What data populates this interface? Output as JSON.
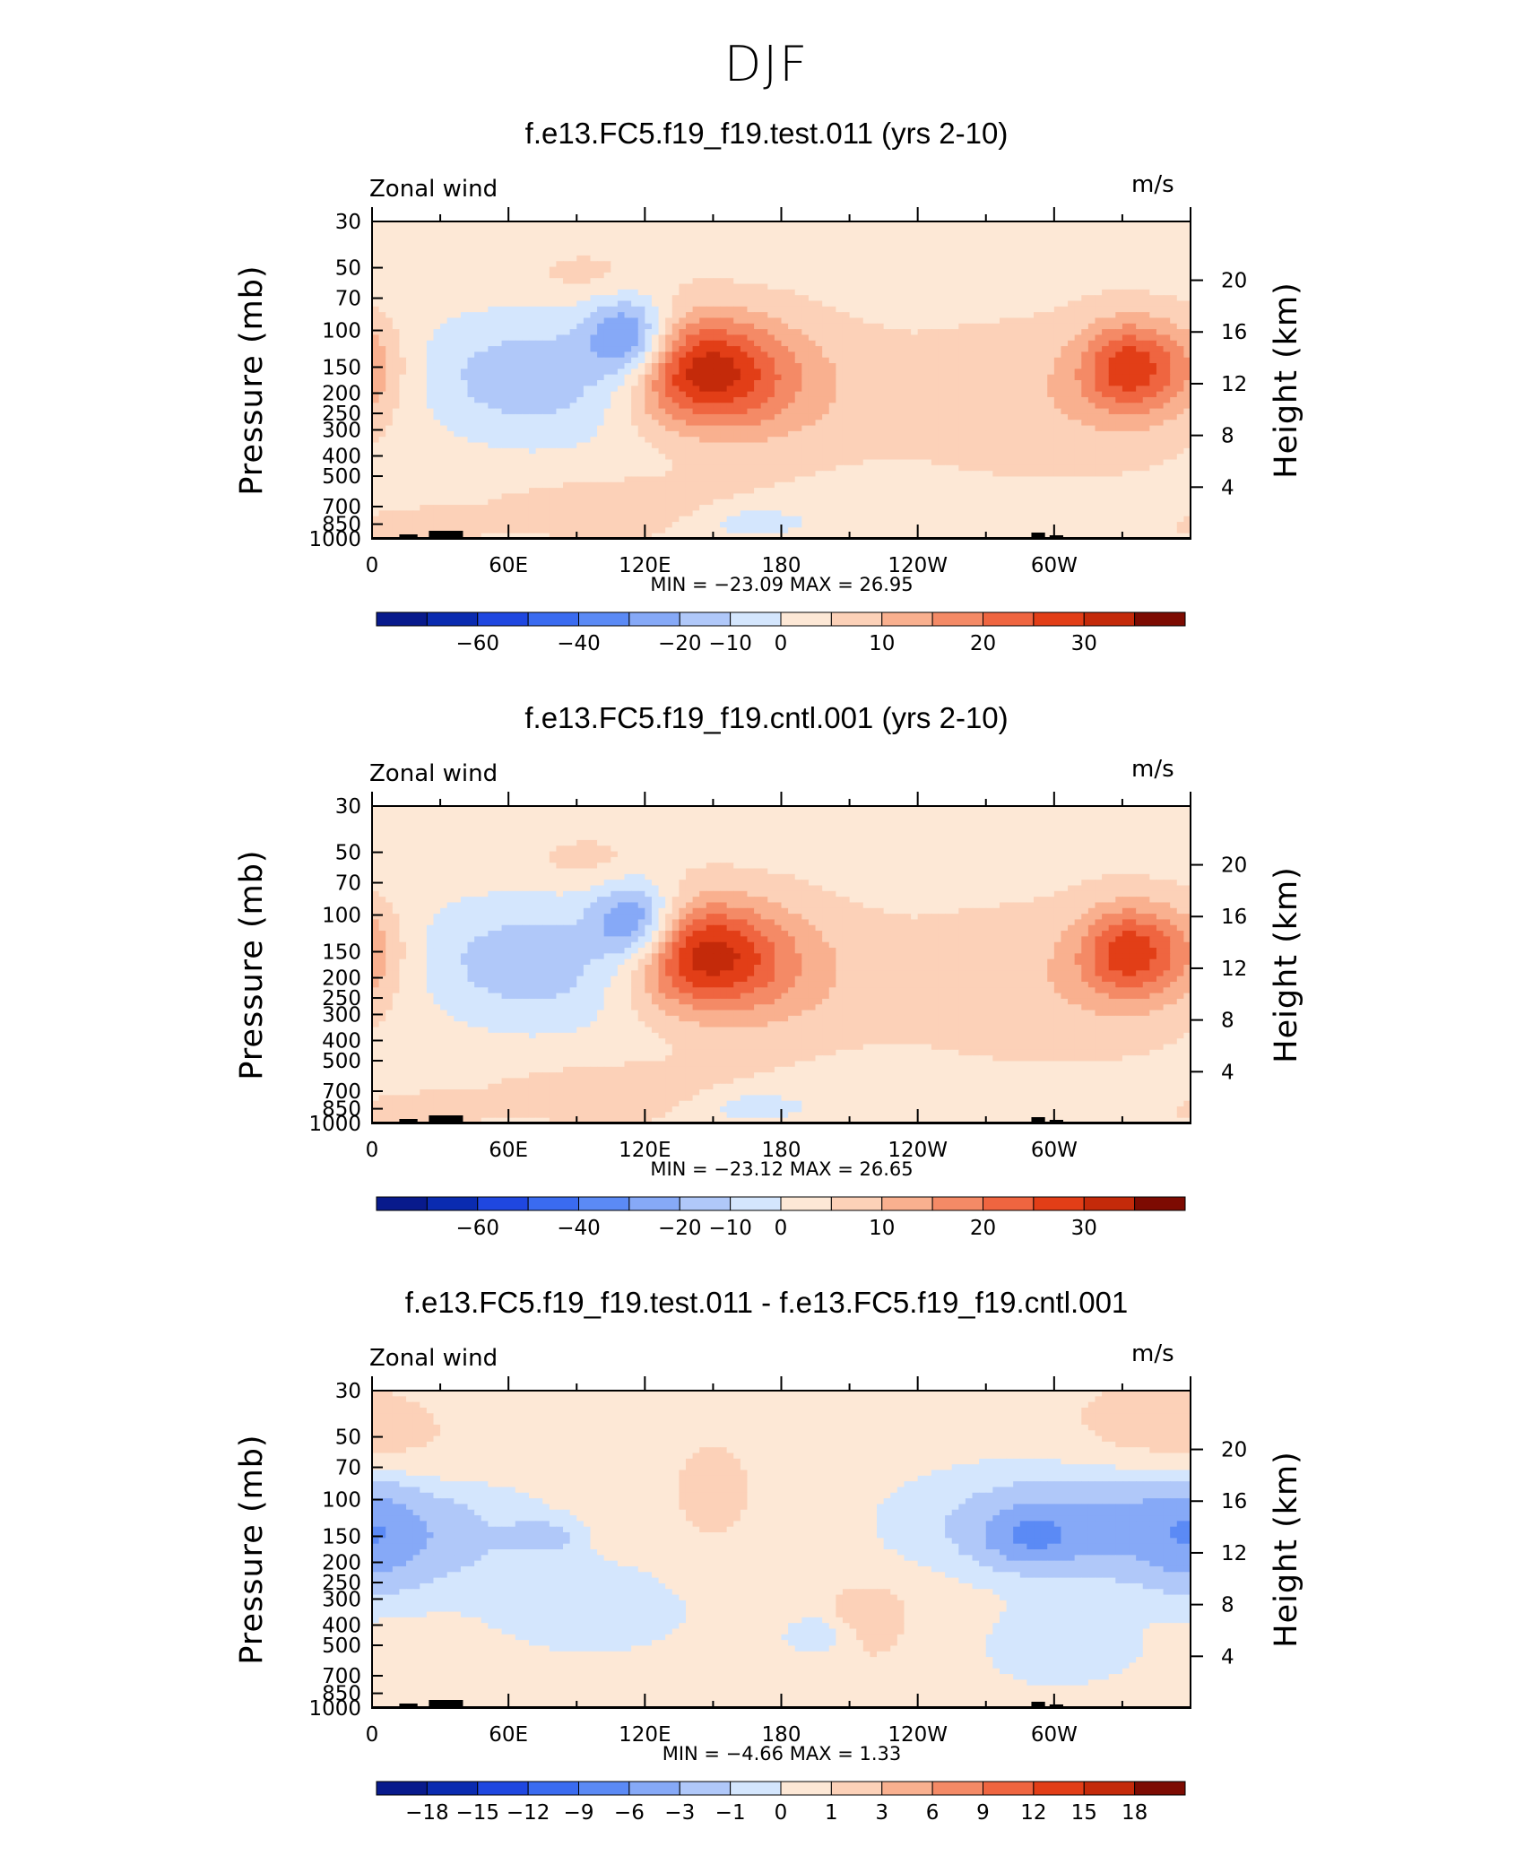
{
  "page_title": "DJF",
  "colors": {
    "blues": [
      "#081a8c",
      "#0a2bb0",
      "#1f47e0",
      "#3a6bf0",
      "#5b8af5",
      "#86a9f7",
      "#b0c8f9",
      "#d4e6fd"
    ],
    "reds": [
      "#fde8d6",
      "#fcd1b8",
      "#f9b08f",
      "#f48a66",
      "#ef6540",
      "#e23e17",
      "#c42a0a",
      "#a01a06",
      "#7d0b02"
    ],
    "neutral": "#d4e6fd",
    "terrain": "#000000"
  },
  "panels": [
    {
      "title": "f.e13.FC5.f19_f19.test.011 (yrs 2-10)",
      "variable_label": "Zonal wind",
      "units_label": "m/s",
      "stats_text": "MIN =  −23.09   MAX =   26.95",
      "colorbar_labels": [
        "−60",
        "−40",
        "−20",
        "−10",
        "0",
        "10",
        "20",
        "30"
      ]
    },
    {
      "title": "f.e13.FC5.f19_f19.cntl.001 (yrs 2-10)",
      "variable_label": "Zonal wind",
      "units_label": "m/s",
      "stats_text": "MIN =  −23.12   MAX =   26.65",
      "colorbar_labels": [
        "−60",
        "−40",
        "−20",
        "−10",
        "0",
        "10",
        "20",
        "30"
      ]
    },
    {
      "title": "f.e13.FC5.f19_f19.test.011 - f.e13.FC5.f19_f19.cntl.001",
      "variable_label": "Zonal wind",
      "units_label": "m/s",
      "stats_text": "MIN =    −4.66   MAX =     1.33",
      "colorbar_labels": [
        "−18",
        "−15",
        "−12",
        "−9",
        "−6",
        "−3",
        "−1",
        "0",
        "1",
        "3",
        "6",
        "9",
        "12",
        "15",
        "18"
      ]
    }
  ],
  "chart_data": [
    {
      "type": "heatmap",
      "title": "f.e13.FC5.f19_f19.test.011 (yrs 2-10)",
      "ylabel": "Pressure (mb)",
      "ylabel_right": "Height (km)",
      "xticks": [
        "0",
        "60E",
        "120E",
        "180",
        "120W",
        "60W"
      ],
      "yticks": [
        "30",
        "50",
        "70",
        "100",
        "150",
        "200",
        "250",
        "300",
        "400",
        "500",
        "700",
        "850",
        "1000"
      ],
      "yticks_right": [
        "20",
        "16",
        "12",
        "8",
        "4"
      ],
      "min": -23.09,
      "max": 26.95,
      "levels": [
        -60,
        -50,
        -40,
        -30,
        -20,
        -15,
        -10,
        -5,
        0,
        5,
        10,
        15,
        20,
        25,
        30,
        35
      ],
      "features": [
        {
          "kind": "jet",
          "sign": "positive",
          "lon": 145,
          "p": 150,
          "peak": 27
        },
        {
          "kind": "jet",
          "sign": "positive",
          "lon": 333,
          "p": 150,
          "peak": 22
        },
        {
          "kind": "easterly",
          "sign": "negative",
          "lon": 115,
          "p": 100,
          "peak": -23
        },
        {
          "kind": "low_level_westerly",
          "sign": "positive",
          "lon": 110,
          "p": 700,
          "peak": 7
        }
      ]
    },
    {
      "type": "heatmap",
      "title": "f.e13.FC5.f19_f19.cntl.001 (yrs 2-10)",
      "ylabel": "Pressure (mb)",
      "ylabel_right": "Height (km)",
      "xticks": [
        "0",
        "60E",
        "120E",
        "180",
        "120W",
        "60W"
      ],
      "yticks": [
        "30",
        "50",
        "70",
        "100",
        "150",
        "200",
        "250",
        "300",
        "400",
        "500",
        "700",
        "850",
        "1000"
      ],
      "yticks_right": [
        "20",
        "16",
        "12",
        "8",
        "4"
      ],
      "min": -23.12,
      "max": 26.65,
      "levels": [
        -60,
        -50,
        -40,
        -30,
        -20,
        -15,
        -10,
        -5,
        0,
        5,
        10,
        15,
        20,
        25,
        30,
        35
      ],
      "features": [
        {
          "kind": "jet",
          "sign": "positive",
          "lon": 145,
          "p": 150,
          "peak": 26.65
        },
        {
          "kind": "jet",
          "sign": "positive",
          "lon": 330,
          "p": 150,
          "peak": 22
        },
        {
          "kind": "easterly",
          "sign": "negative",
          "lon": 118,
          "p": 100,
          "peak": -23
        },
        {
          "kind": "low_level_westerly",
          "sign": "positive",
          "lon": 105,
          "p": 700,
          "peak": 7
        }
      ]
    },
    {
      "type": "heatmap",
      "title": "f.e13.FC5.f19_f19.test.011 - f.e13.FC5.f19_f19.cntl.001",
      "ylabel": "Pressure (mb)",
      "ylabel_right": "Height (km)",
      "xticks": [
        "0",
        "60E",
        "120E",
        "180",
        "120W",
        "60W"
      ],
      "yticks": [
        "30",
        "50",
        "70",
        "100",
        "150",
        "200",
        "250",
        "300",
        "400",
        "500",
        "700",
        "850",
        "1000"
      ],
      "yticks_right": [
        "20",
        "16",
        "12",
        "8",
        "4"
      ],
      "min": -4.66,
      "max": 1.33,
      "levels": [
        -18,
        -15,
        -12,
        -9,
        -6,
        -3,
        -1,
        0,
        1,
        3,
        6,
        9,
        12,
        15,
        18
      ]
    }
  ]
}
